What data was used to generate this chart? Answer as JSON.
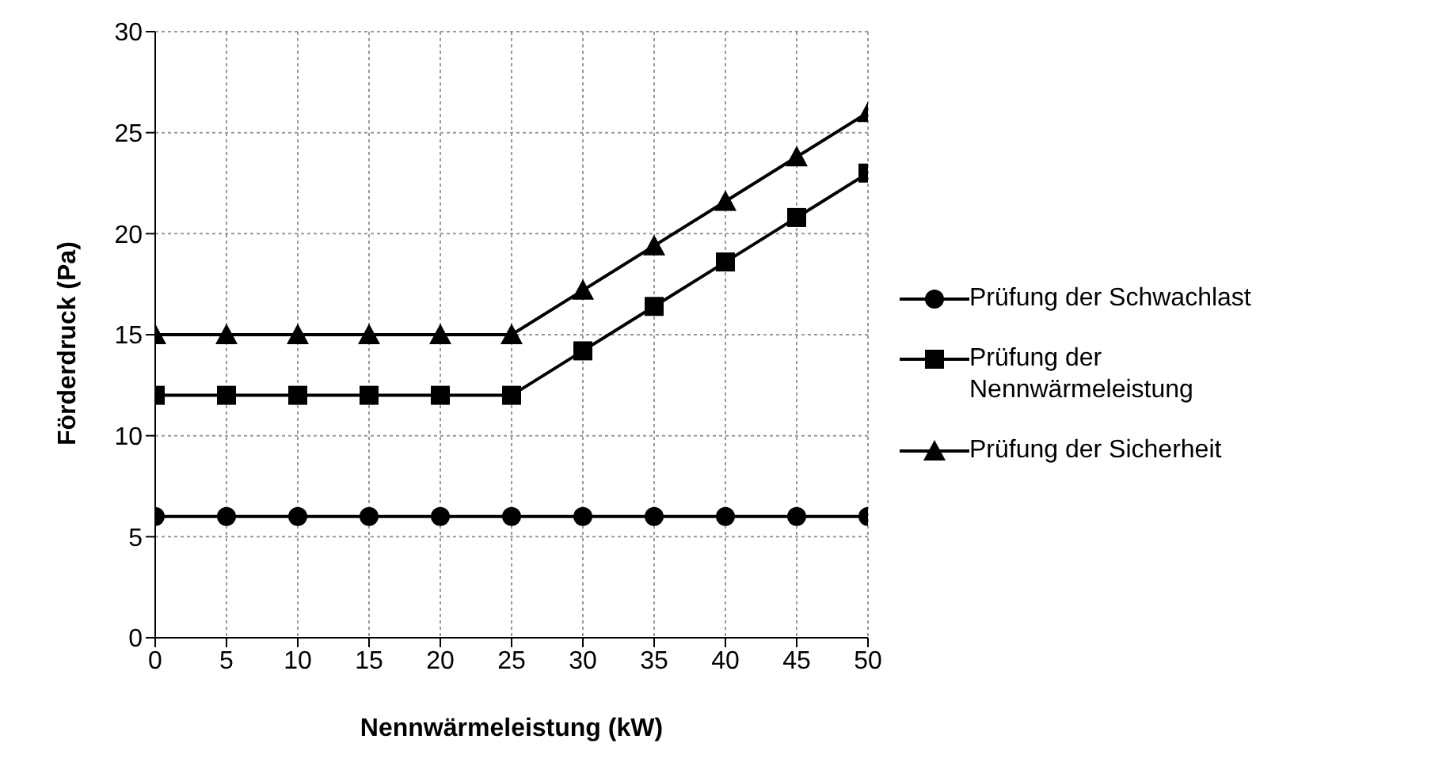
{
  "chart_data": {
    "type": "line",
    "xlabel": "Nennwärmeleistung (kW)",
    "ylabel": "Förderdruck (Pa)",
    "x": [
      0,
      5,
      10,
      15,
      20,
      25,
      30,
      35,
      40,
      45,
      50
    ],
    "series": [
      {
        "name": "Prüfung der Schwachlast",
        "color": "#000000",
        "marker": "circle",
        "values": [
          6,
          6,
          6,
          6,
          6,
          6,
          6,
          6,
          6,
          6,
          6
        ]
      },
      {
        "name": "Prüfung der Nennwärmeleistung",
        "color": "#000000",
        "marker": "square",
        "values": [
          12,
          12,
          12,
          12,
          12,
          12,
          14.2,
          16.4,
          18.6,
          20.8,
          23
        ]
      },
      {
        "name": "Prüfung der Sicherheit",
        "color": "#000000",
        "marker": "triangle",
        "values": [
          15,
          15,
          15,
          15,
          15,
          15,
          17.2,
          19.4,
          21.6,
          23.8,
          26
        ]
      }
    ],
    "xlim": [
      0,
      50
    ],
    "xticks": [
      0,
      5,
      10,
      15,
      20,
      25,
      30,
      35,
      40,
      45,
      50
    ],
    "ylim": [
      0,
      30
    ],
    "yticks": [
      0,
      5,
      10,
      15,
      20,
      25,
      30
    ],
    "grid": true,
    "legend": "right",
    "line_style": "solid"
  }
}
